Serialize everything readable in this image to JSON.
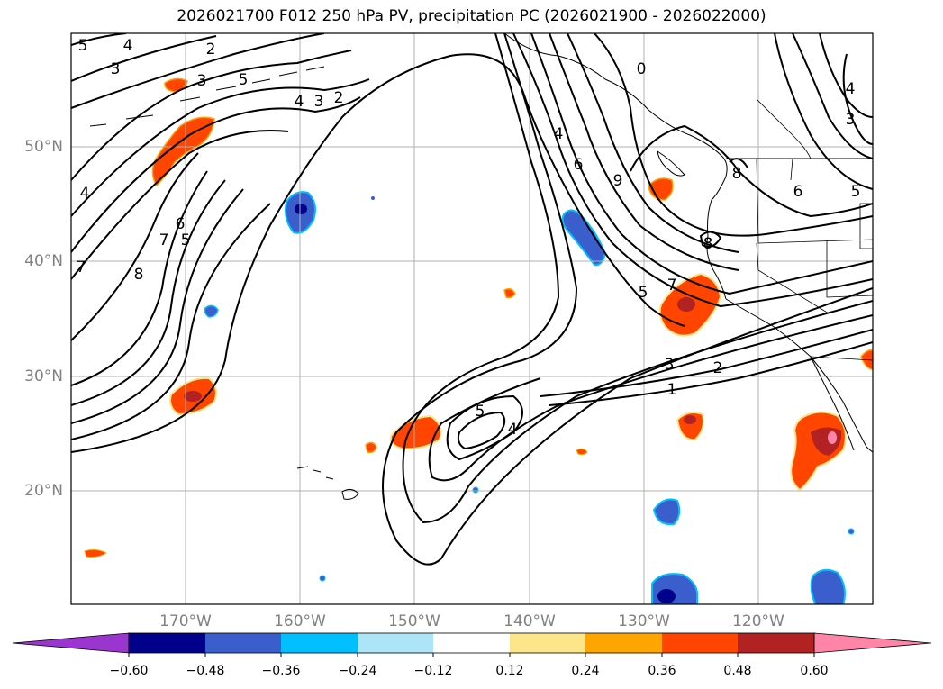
{
  "title": "2026021700 F012 250 hPa PV, precipitation PC (2026021900 - 2026022000)",
  "lat_labels": [
    "50°N",
    "40°N",
    "30°N",
    "20°N"
  ],
  "lon_labels": [
    "170°W",
    "160°W",
    "150°W",
    "140°W",
    "130°W",
    "120°W"
  ],
  "colorbar": {
    "tick_labels": [
      "−0.60",
      "−0.48",
      "−0.36",
      "−0.24",
      "−0.12",
      "0.12",
      "0.24",
      "0.36",
      "0.48",
      "0.60"
    ],
    "colors": [
      "#9a35cf",
      "#00008b",
      "#3a5fcd",
      "#00bfff",
      "#aee4f7",
      "#ffffff",
      "#fde68a",
      "#ffa500",
      "#ff4500",
      "#b22222",
      "#ff85a8"
    ]
  },
  "contour_labels": [
    "5",
    "4",
    "3",
    "2",
    "3",
    "5",
    "4",
    "3",
    "2",
    "4",
    "7",
    "6",
    "5",
    "7",
    "8",
    "0",
    "6",
    "9",
    "4",
    "7",
    "5",
    "8",
    "8",
    "4",
    "3",
    "6",
    "5",
    "3",
    "2",
    "1",
    "5",
    "4"
  ],
  "precip_colors": {
    "orange_red": "#ff4500",
    "dark_red": "#b22222",
    "pink": "#ff85a8",
    "yellow": "#fde68a",
    "blue": "#3a5fcd",
    "navy": "#00008b",
    "cyan": "#00bfff"
  }
}
